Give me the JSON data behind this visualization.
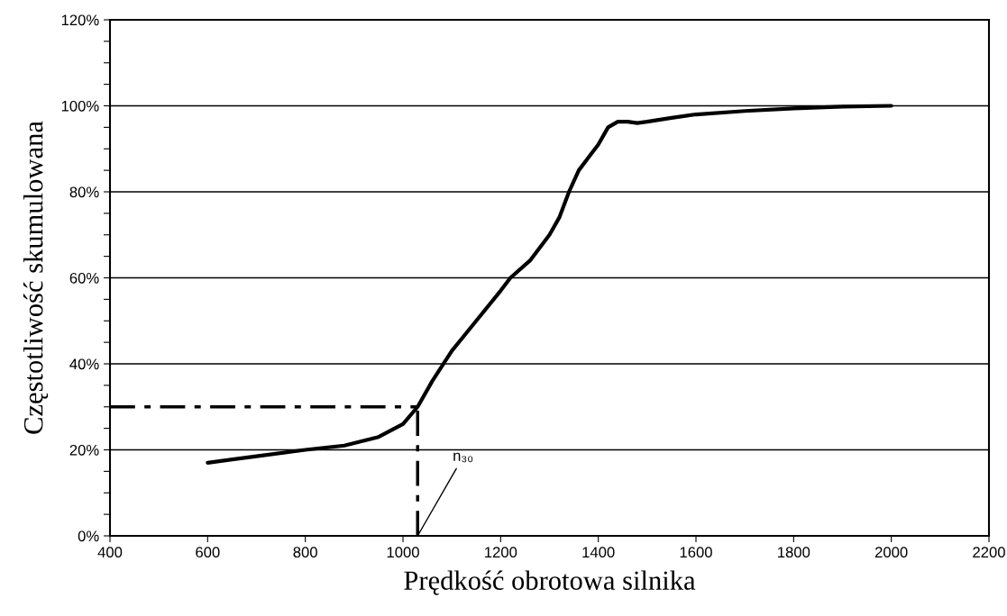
{
  "chart_data": {
    "type": "line",
    "xlabel": "Prędkość obrotowa silnika",
    "ylabel": "Częstotliwość skumulowana",
    "series": [
      {
        "color": "#000000",
        "x": [
          600,
          700,
          800,
          880,
          950,
          1000,
          1030,
          1060,
          1100,
          1150,
          1200,
          1220,
          1260,
          1300,
          1320,
          1340,
          1360,
          1380,
          1400,
          1420,
          1440,
          1460,
          1480,
          1500,
          1550,
          1600,
          1700,
          1800,
          1900,
          2000
        ],
        "values": [
          17,
          18.5,
          20,
          21,
          23,
          26,
          30,
          36,
          43,
          50,
          57,
          60,
          64,
          70,
          74,
          80,
          85,
          88,
          91,
          95,
          96.3,
          96.3,
          96,
          96.3,
          97.2,
          98,
          98.8,
          99.4,
          99.8,
          100
        ]
      }
    ],
    "xlim": [
      400,
      2200
    ],
    "xticks": [
      400,
      600,
      800,
      1000,
      1200,
      1400,
      1600,
      1800,
      2000,
      2200
    ],
    "ylim": [
      0,
      120
    ],
    "yticks": [
      {
        "value": 0,
        "label": "0%"
      },
      {
        "value": 5,
        "label": null
      },
      {
        "value": 10,
        "label": null
      },
      {
        "value": 15,
        "label": null
      },
      {
        "value": 20,
        "label": "20%"
      },
      {
        "value": 25,
        "label": null
      },
      {
        "value": 30,
        "label": null
      },
      {
        "value": 35,
        "label": null
      },
      {
        "value": 40,
        "label": "40%"
      },
      {
        "value": 45,
        "label": null
      },
      {
        "value": 50,
        "label": null
      },
      {
        "value": 55,
        "label": null
      },
      {
        "value": 60,
        "label": "60%"
      },
      {
        "value": 65,
        "label": null
      },
      {
        "value": 70,
        "label": null
      },
      {
        "value": 75,
        "label": null
      },
      {
        "value": 80,
        "label": "80%"
      },
      {
        "value": 85,
        "label": null
      },
      {
        "value": 90,
        "label": null
      },
      {
        "value": 95,
        "label": null
      },
      {
        "value": 100,
        "label": "100%"
      },
      {
        "value": 105,
        "label": null
      },
      {
        "value": 110,
        "label": null
      },
      {
        "value": 115,
        "label": null
      },
      {
        "value": 120,
        "label": "120%"
      }
    ],
    "grid": "y",
    "legend": false,
    "marker": "none",
    "line_style": "solid",
    "ref_lines": [
      {
        "axis": "y",
        "value": 30,
        "color": "#000000",
        "line_style": "dashed"
      },
      {
        "axis": "x",
        "value": 1030,
        "color": "#000000",
        "line_style": "dashed"
      }
    ],
    "annotations": [
      {
        "text": "n₃₀",
        "x": 1030,
        "y": 0
      }
    ]
  }
}
